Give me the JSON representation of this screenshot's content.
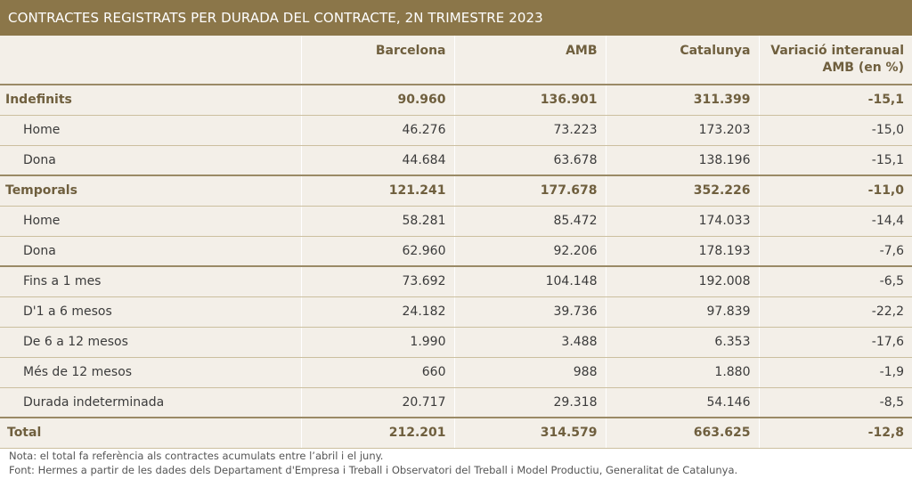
{
  "title": "CONTRACTES REGISTRATS PER DURADA DEL CONTRACTE, 2N TRIMESTRE 2023",
  "headers": [
    "",
    "Barcelona",
    "AMB",
    "Catalunya",
    "Variació interanual AMB (en %)"
  ],
  "rows": [
    {
      "label": "Indefinits",
      "values": [
        "90.960",
        "136.901",
        "311.399",
        "-15,1"
      ],
      "type": "group"
    },
    {
      "label": "Home",
      "values": [
        "46.276",
        "73.223",
        "173.203",
        "-15,0"
      ],
      "type": "sub"
    },
    {
      "label": "Dona",
      "values": [
        "44.684",
        "63.678",
        "138.196",
        "-15,1"
      ],
      "type": "sub"
    },
    {
      "label": "Temporals",
      "values": [
        "121.241",
        "177.678",
        "352.226",
        "-11,0"
      ],
      "type": "group"
    },
    {
      "label": "Home",
      "values": [
        "58.281",
        "85.472",
        "174.033",
        "-14,4"
      ],
      "type": "sub"
    },
    {
      "label": "Dona",
      "values": [
        "62.960",
        "92.206",
        "178.193",
        "-7,6"
      ],
      "type": "sub"
    },
    {
      "label": "Fins a 1 mes",
      "values": [
        "73.692",
        "104.148",
        "192.008",
        "-6,5"
      ],
      "type": "sub"
    },
    {
      "label": "D'1 a 6 mesos",
      "values": [
        "24.182",
        "39.736",
        "97.839",
        "-22,2"
      ],
      "type": "sub"
    },
    {
      "label": "De 6 a 12 mesos",
      "values": [
        "1.990",
        "3.488",
        "6.353",
        "-17,6"
      ],
      "type": "sub"
    },
    {
      "label": "Més de 12 mesos",
      "values": [
        "660",
        "988",
        "1.880",
        "-1,9"
      ],
      "type": "sub"
    },
    {
      "label": "Durada indeterminada",
      "values": [
        "20.717",
        "29.318",
        "54.146",
        "-8,5"
      ],
      "type": "sub"
    },
    {
      "label": "Total",
      "values": [
        "212.201",
        "314.579",
        "663.625",
        "-12,8"
      ],
      "type": "total"
    }
  ],
  "notes": [
    "Nota: el total fa referència als contractes acumulats entre l’abril i el juny.",
    "Font: Hermes a partir de les dades dels Departament d'Empresa i Treball i Observatori del Treball i Model Productiu, Generalitat de Catalunya."
  ],
  "colors": {
    "title_bg": "#8b7649",
    "cell_bg": "#f3efe8",
    "rule": "#9a8a66",
    "accent_text": "#6f5f3e"
  }
}
